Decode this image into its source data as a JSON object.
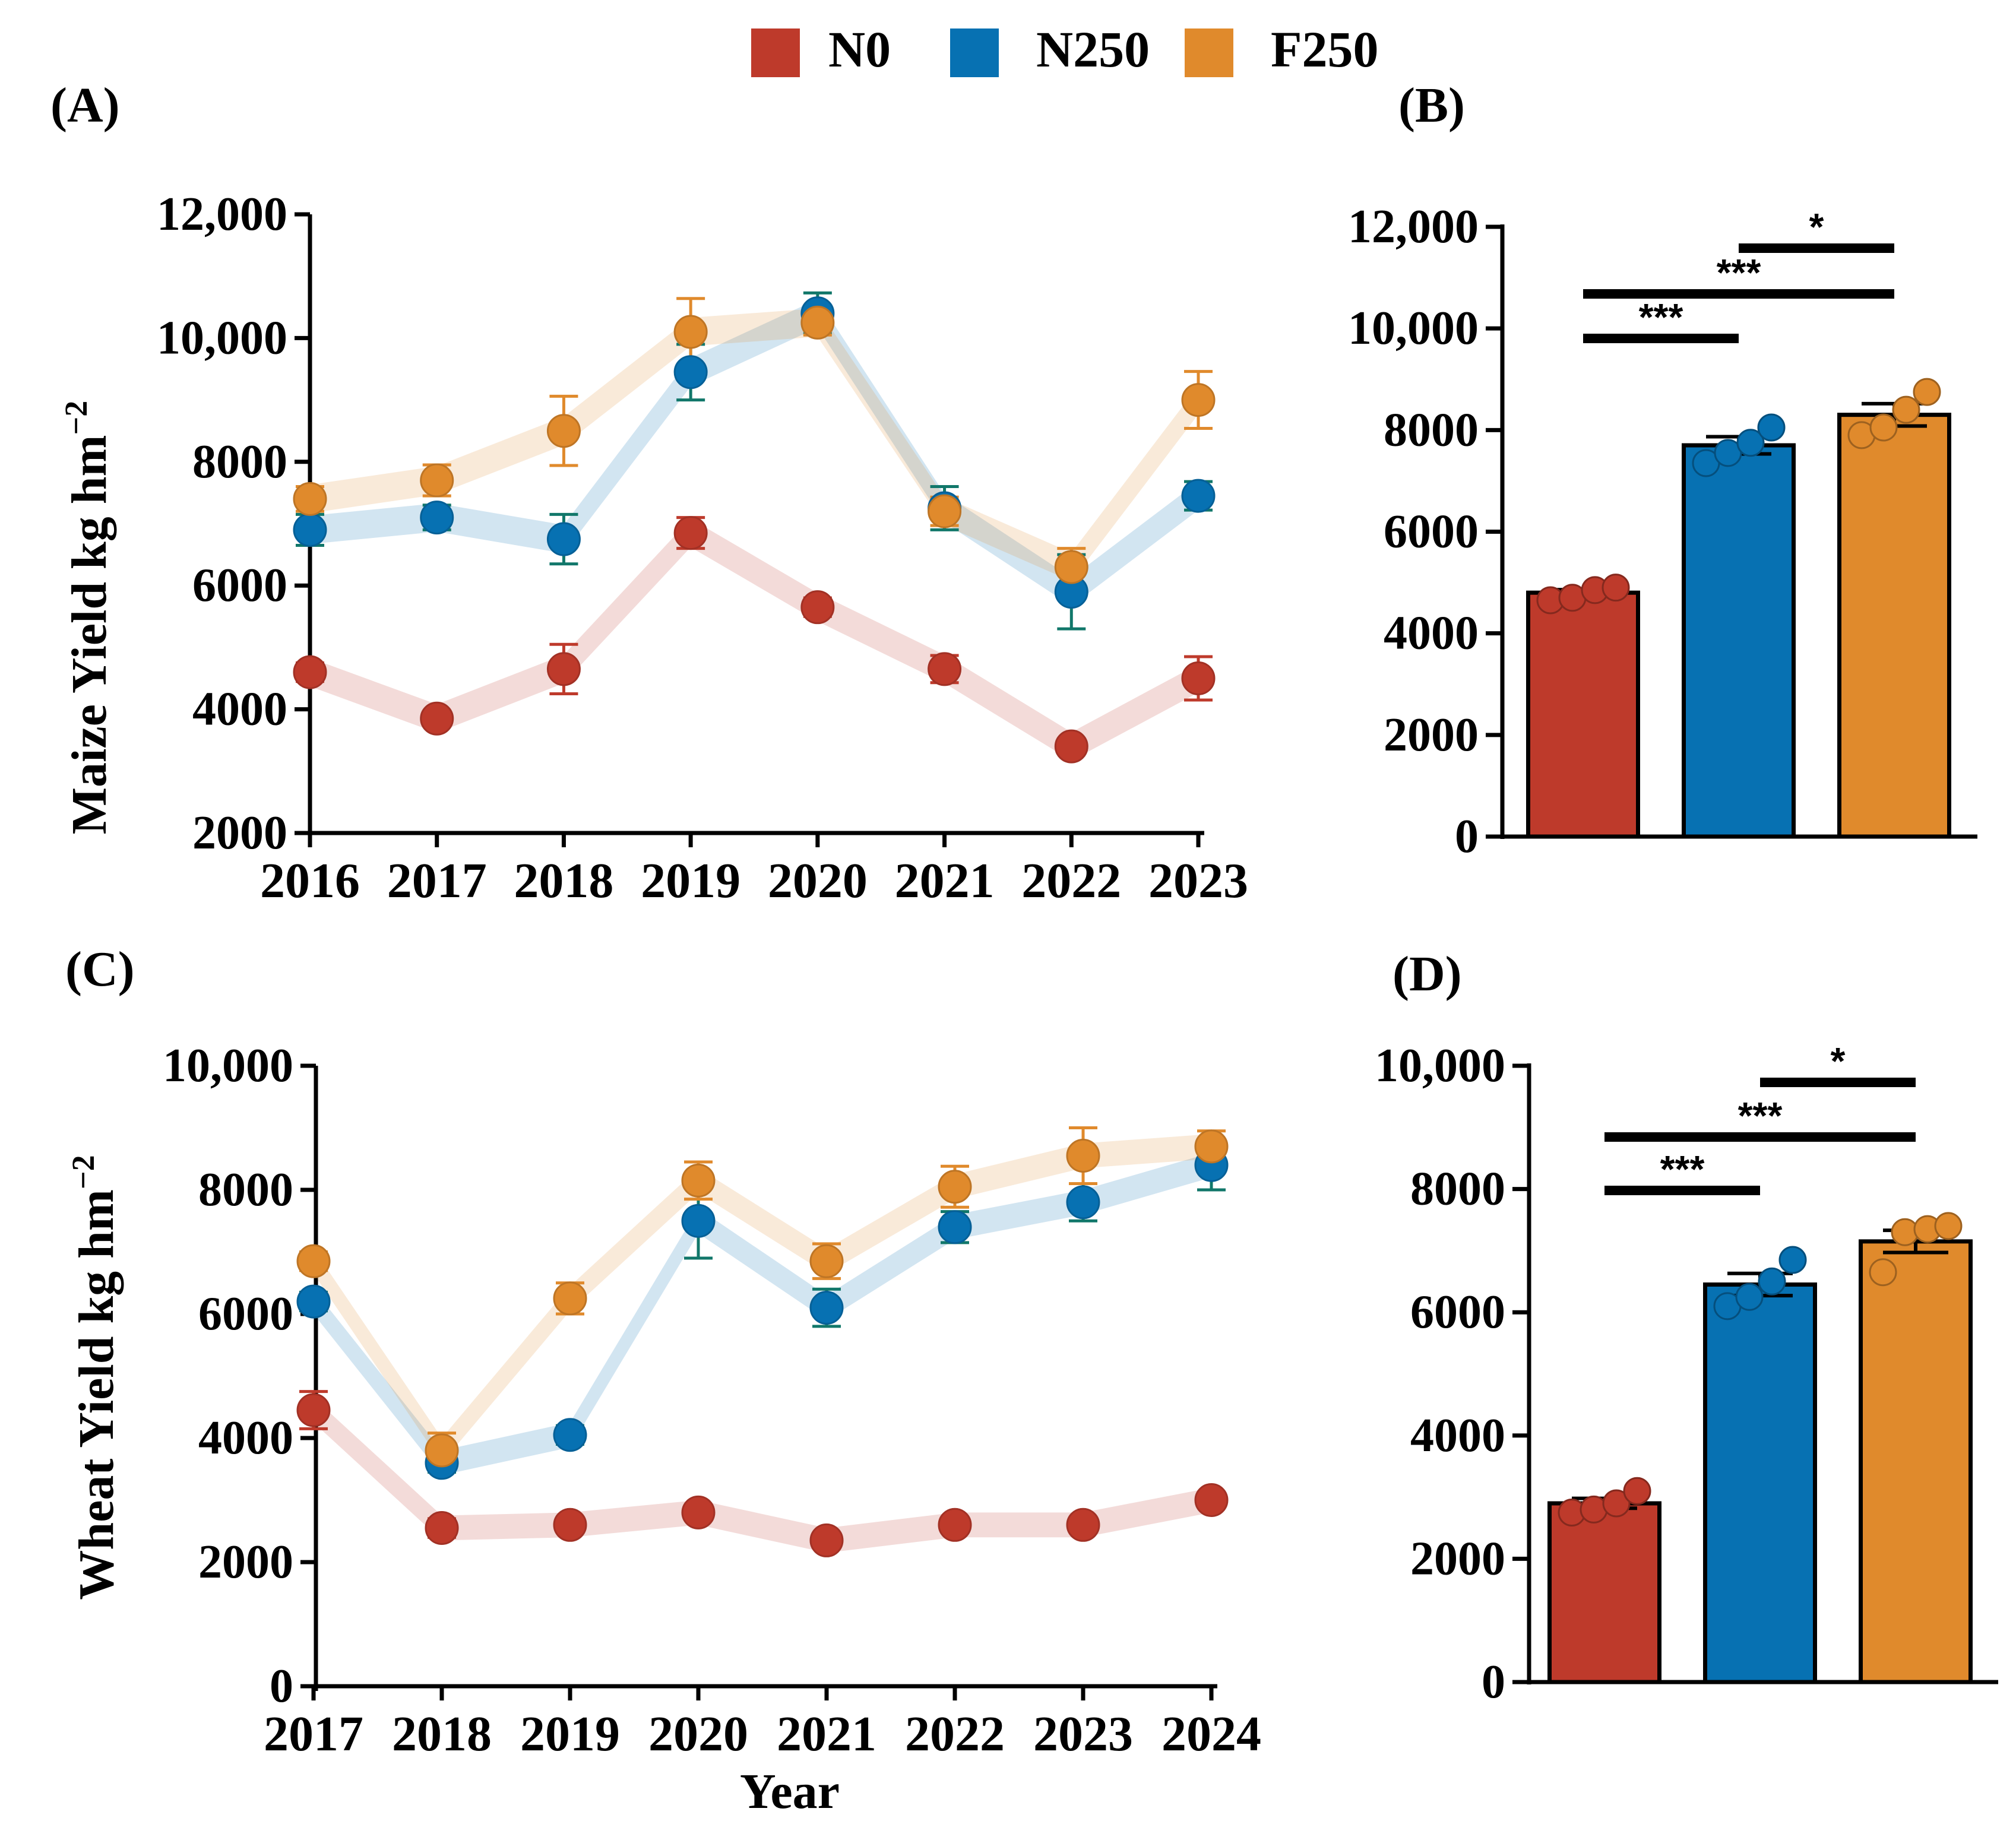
{
  "legend": [
    {
      "name": "N0",
      "color": "#be3a2b"
    },
    {
      "name": "N250",
      "color": "#0771b2"
    },
    {
      "name": "F250",
      "color": "#e08a2c"
    }
  ],
  "chart_data": [
    {
      "panel": "(A)",
      "type": "line",
      "ylabel": "Maize Yield kg hm",
      "ylabel_sup": "−2",
      "xlabel": "",
      "categories": [
        "2016",
        "2017",
        "2018",
        "2019",
        "2020",
        "2021",
        "2022",
        "2023"
      ],
      "yticks": [
        "2000",
        "4000",
        "6000",
        "8000",
        "10,000",
        "12,000"
      ],
      "ylim": [
        2000,
        12000
      ],
      "series": [
        {
          "name": "N0",
          "values": [
            4600,
            3850,
            4650,
            6850,
            5650,
            4650,
            3400,
            4500
          ],
          "errors": [
            150,
            120,
            400,
            250,
            150,
            220,
            100,
            350
          ]
        },
        {
          "name": "N250",
          "values": [
            6900,
            7100,
            6750,
            9450,
            10400,
            7250,
            5900,
            7450
          ],
          "errors": [
            250,
            200,
            400,
            450,
            330,
            350,
            600,
            230
          ]
        },
        {
          "name": "F250",
          "values": [
            7400,
            7700,
            8500,
            10100,
            10250,
            7200,
            6300,
            9000
          ],
          "errors": [
            200,
            250,
            560,
            540,
            200,
            230,
            300,
            460
          ]
        }
      ]
    },
    {
      "panel": "(B)",
      "type": "bar",
      "categories": [
        "N0",
        "N250",
        "F250"
      ],
      "yticks": [
        "0",
        "2000",
        "4000",
        "6000",
        "8000",
        "10,000",
        "12,000"
      ],
      "ylim": [
        0,
        12000
      ],
      "values": [
        4800,
        7700,
        8300
      ],
      "errors": [
        60,
        170,
        220
      ],
      "points": [
        [
          4650,
          4700,
          4850,
          4900
        ],
        [
          7350,
          7550,
          7750,
          8050
        ],
        [
          7900,
          8050,
          8400,
          8750
        ]
      ],
      "significance": [
        {
          "from": 0,
          "to": 1,
          "label": "***"
        },
        {
          "from": 0,
          "to": 2,
          "label": "***"
        },
        {
          "from": 1,
          "to": 2,
          "label": "*"
        }
      ]
    },
    {
      "panel": "(C)",
      "type": "line",
      "ylabel": "Wheat Yield  kg hm",
      "ylabel_sup": "−2",
      "xlabel": "Year",
      "categories": [
        "2017",
        "2018",
        "2019",
        "2020",
        "2021",
        "2022",
        "2023",
        "2024"
      ],
      "yticks": [
        "0",
        "2000",
        "4000",
        "6000",
        "8000",
        "10,000"
      ],
      "ylim": [
        0,
        10000
      ],
      "series": [
        {
          "name": "N0",
          "values": [
            4450,
            2550,
            2600,
            2800,
            2350,
            2600,
            2600,
            3000
          ],
          "errors": [
            300,
            150,
            100,
            120,
            100,
            120,
            100,
            100
          ]
        },
        {
          "name": "N250",
          "values": [
            6200,
            3600,
            4050,
            7500,
            6100,
            7400,
            7800,
            8400
          ],
          "errors": [
            150,
            150,
            150,
            600,
            300,
            250,
            300,
            400
          ]
        },
        {
          "name": "F250",
          "values": [
            6850,
            3800,
            6250,
            8150,
            6850,
            8050,
            8550,
            8700
          ],
          "errors": [
            150,
            280,
            250,
            300,
            280,
            330,
            450,
            250
          ]
        }
      ]
    },
    {
      "panel": "(D)",
      "type": "bar",
      "categories": [
        "N0",
        "N250",
        "F250"
      ],
      "yticks": [
        "0",
        "2000",
        "4000",
        "6000",
        "8000",
        "10,000"
      ],
      "ylim": [
        0,
        10000
      ],
      "values": [
        2900,
        6450,
        7150
      ],
      "errors": [
        80,
        180,
        180
      ],
      "points": [
        [
          2750,
          2800,
          2900,
          3100
        ],
        [
          6100,
          6250,
          6500,
          6850
        ],
        [
          6650,
          7300,
          7350,
          7400
        ]
      ],
      "significance": [
        {
          "from": 0,
          "to": 1,
          "label": "***"
        },
        {
          "from": 0,
          "to": 2,
          "label": "***"
        },
        {
          "from": 1,
          "to": 2,
          "label": "*"
        }
      ]
    }
  ]
}
